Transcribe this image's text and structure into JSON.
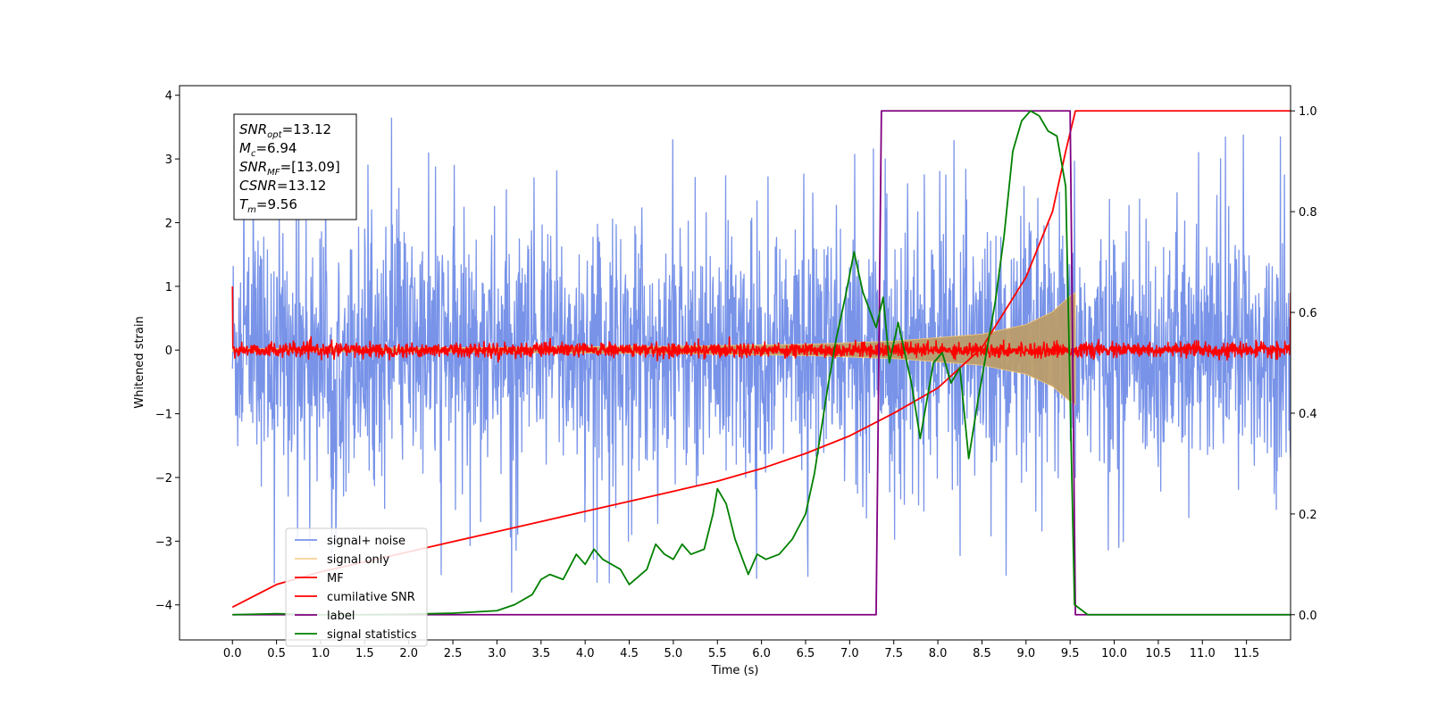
{
  "chart_data": {
    "type": "line",
    "xlabel": "Time (s)",
    "ylabel": "Whitened strain",
    "xlim": [
      -0.6,
      12.0
    ],
    "ylim": [
      -4.55,
      4.15
    ],
    "y2lim": [
      -0.05,
      1.05
    ],
    "x_ticks": [
      0.0,
      0.5,
      1.0,
      1.5,
      2.0,
      2.5,
      3.0,
      3.5,
      4.0,
      4.5,
      5.0,
      5.5,
      6.0,
      6.5,
      7.0,
      7.5,
      8.0,
      8.5,
      9.0,
      9.5,
      10.0,
      10.5,
      11.0,
      11.5
    ],
    "x_tick_labels": [
      "0.0",
      "0.5",
      "1.0",
      "1.5",
      "2.0",
      "2.5",
      "3.0",
      "3.5",
      "4.0",
      "4.5",
      "5.0",
      "5.5",
      "6.0",
      "6.5",
      "7.0",
      "7.5",
      "8.0",
      "8.5",
      "9.0",
      "9.5",
      "10.0",
      "10.5",
      "11.0",
      "11.5"
    ],
    "y_ticks": [
      -4,
      -3,
      -2,
      -1,
      0,
      1,
      2,
      3,
      4
    ],
    "y_tick_labels": [
      "−4",
      "−3",
      "−2",
      "−1",
      "0",
      "1",
      "2",
      "3",
      "4"
    ],
    "y2_ticks": [
      0.0,
      0.2,
      0.4,
      0.6,
      0.8,
      1.0
    ],
    "y2_tick_labels": [
      "0.0",
      "0.2",
      "0.4",
      "0.6",
      "0.8",
      "1.0"
    ],
    "grid": false,
    "legend_position": "bottom-left",
    "annotation": {
      "lines": [
        {
          "main": "SNR",
          "sub": "opt",
          "value": "=13.12"
        },
        {
          "main": "M",
          "sub": "c",
          "value": "=6.94"
        },
        {
          "main": "SNR",
          "sub": "MF",
          "value": "=[13.09]"
        },
        {
          "main": "CSNR",
          "sub": "",
          "value": "=13.12"
        },
        {
          "main": "T",
          "sub": "m",
          "value": "=9.56"
        }
      ]
    },
    "series": [
      {
        "name": "signal+ noise",
        "color": "#7893e8",
        "axis": "left",
        "kind": "noise",
        "envelope": 2.1,
        "x_range": [
          0.0,
          12.0
        ]
      },
      {
        "name": "signal only",
        "color": "#f5c878",
        "axis": "left",
        "kind": "chirp",
        "x_range": [
          0.0,
          9.56
        ],
        "envelope_points": [
          [
            0.0,
            0.02
          ],
          [
            3.0,
            0.04
          ],
          [
            5.0,
            0.06
          ],
          [
            6.5,
            0.09
          ],
          [
            7.5,
            0.14
          ],
          [
            8.5,
            0.25
          ],
          [
            9.0,
            0.4
          ],
          [
            9.3,
            0.6
          ],
          [
            9.5,
            0.85
          ],
          [
            9.56,
            0.9
          ]
        ]
      },
      {
        "name": "MF",
        "color": "#ff0000",
        "axis": "left",
        "kind": "noise",
        "envelope": 0.12,
        "x_range": [
          0.0,
          12.0
        ]
      },
      {
        "name": "cumilative SNR",
        "color": "#ff0000",
        "axis": "right",
        "kind": "line",
        "points": [
          [
            0.0,
            0.015
          ],
          [
            0.5,
            0.06
          ],
          [
            1.0,
            0.085
          ],
          [
            1.5,
            0.105
          ],
          [
            2.0,
            0.125
          ],
          [
            2.5,
            0.145
          ],
          [
            3.0,
            0.165
          ],
          [
            3.5,
            0.185
          ],
          [
            4.0,
            0.205
          ],
          [
            4.5,
            0.225
          ],
          [
            5.0,
            0.245
          ],
          [
            5.5,
            0.265
          ],
          [
            6.0,
            0.29
          ],
          [
            6.5,
            0.32
          ],
          [
            7.0,
            0.355
          ],
          [
            7.5,
            0.4
          ],
          [
            8.0,
            0.45
          ],
          [
            8.5,
            0.53
          ],
          [
            9.0,
            0.67
          ],
          [
            9.3,
            0.8
          ],
          [
            9.45,
            0.92
          ],
          [
            9.56,
            1.0
          ],
          [
            12.0,
            1.0
          ]
        ]
      },
      {
        "name": "label",
        "color": "#800080",
        "axis": "right",
        "kind": "step",
        "points": [
          [
            0.0,
            0.0
          ],
          [
            7.3,
            0.0
          ],
          [
            7.36,
            1.0
          ],
          [
            9.5,
            1.0
          ],
          [
            9.56,
            0.0
          ],
          [
            12.0,
            0.0
          ]
        ]
      },
      {
        "name": "signal statistics",
        "color": "#008000",
        "axis": "right",
        "kind": "line",
        "points": [
          [
            0.0,
            0.0
          ],
          [
            0.5,
            0.002
          ],
          [
            1.0,
            0.0
          ],
          [
            1.5,
            0.0
          ],
          [
            2.0,
            0.001
          ],
          [
            2.5,
            0.003
          ],
          [
            3.0,
            0.008
          ],
          [
            3.2,
            0.02
          ],
          [
            3.4,
            0.04
          ],
          [
            3.5,
            0.07
          ],
          [
            3.6,
            0.08
          ],
          [
            3.75,
            0.07
          ],
          [
            3.9,
            0.12
          ],
          [
            4.0,
            0.1
          ],
          [
            4.1,
            0.13
          ],
          [
            4.2,
            0.11
          ],
          [
            4.3,
            0.1
          ],
          [
            4.4,
            0.09
          ],
          [
            4.5,
            0.06
          ],
          [
            4.7,
            0.09
          ],
          [
            4.8,
            0.14
          ],
          [
            4.9,
            0.12
          ],
          [
            5.0,
            0.11
          ],
          [
            5.1,
            0.14
          ],
          [
            5.2,
            0.12
          ],
          [
            5.35,
            0.13
          ],
          [
            5.45,
            0.2
          ],
          [
            5.5,
            0.25
          ],
          [
            5.6,
            0.22
          ],
          [
            5.7,
            0.15
          ],
          [
            5.85,
            0.08
          ],
          [
            5.95,
            0.12
          ],
          [
            6.05,
            0.11
          ],
          [
            6.2,
            0.12
          ],
          [
            6.35,
            0.15
          ],
          [
            6.5,
            0.2
          ],
          [
            6.6,
            0.28
          ],
          [
            6.75,
            0.45
          ],
          [
            6.85,
            0.55
          ],
          [
            6.95,
            0.63
          ],
          [
            7.05,
            0.72
          ],
          [
            7.15,
            0.64
          ],
          [
            7.3,
            0.57
          ],
          [
            7.38,
            0.63
          ],
          [
            7.45,
            0.5
          ],
          [
            7.55,
            0.58
          ],
          [
            7.7,
            0.46
          ],
          [
            7.8,
            0.35
          ],
          [
            7.95,
            0.5
          ],
          [
            8.05,
            0.52
          ],
          [
            8.15,
            0.46
          ],
          [
            8.25,
            0.49
          ],
          [
            8.35,
            0.31
          ],
          [
            8.45,
            0.42
          ],
          [
            8.55,
            0.52
          ],
          [
            8.65,
            0.62
          ],
          [
            8.75,
            0.75
          ],
          [
            8.85,
            0.92
          ],
          [
            8.95,
            0.98
          ],
          [
            9.05,
            1.0
          ],
          [
            9.15,
            0.99
          ],
          [
            9.25,
            0.96
          ],
          [
            9.35,
            0.95
          ],
          [
            9.45,
            0.85
          ],
          [
            9.55,
            0.02
          ],
          [
            9.7,
            0.0
          ],
          [
            12.0,
            0.0
          ]
        ]
      }
    ]
  }
}
